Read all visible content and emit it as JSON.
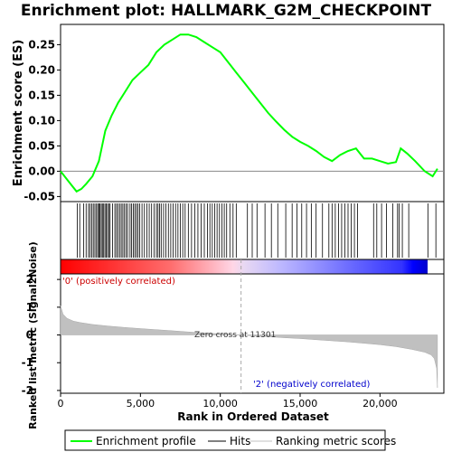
{
  "chart_data": [
    {
      "type": "line",
      "title": "Enrichment plot: HALLMARK_G2M_CHECKPOINT",
      "xlabel": "",
      "ylabel": "Enrichment score (ES)",
      "xlim": [
        0,
        24000
      ],
      "ylim": [
        -0.06,
        0.29
      ],
      "yticks": [
        -0.05,
        0.0,
        0.05,
        0.1,
        0.15,
        0.2,
        0.25
      ],
      "ytick_labels": [
        "-0.05",
        "0.00",
        "0.05",
        "0.10",
        "0.15",
        "0.20",
        "0.25"
      ],
      "series": [
        {
          "name": "Enrichment profile",
          "color": "#00ff00",
          "x": [
            0,
            500,
            1000,
            1300,
            1600,
            2000,
            2400,
            2800,
            3200,
            3600,
            4000,
            4500,
            5000,
            5500,
            6000,
            6500,
            7000,
            7500,
            8000,
            8500,
            9000,
            9500,
            10000,
            10500,
            11000,
            11500,
            12000,
            12500,
            13000,
            13500,
            14000,
            14500,
            15000,
            15500,
            16000,
            16500,
            17000,
            17500,
            18000,
            18500,
            19000,
            19500,
            20000,
            20500,
            21000,
            21300,
            21700,
            22200,
            22800,
            23300,
            23600
          ],
          "y": [
            0.0,
            -0.02,
            -0.04,
            -0.035,
            -0.025,
            -0.01,
            0.02,
            0.08,
            0.11,
            0.135,
            0.155,
            0.18,
            0.195,
            0.21,
            0.235,
            0.25,
            0.26,
            0.27,
            0.27,
            0.265,
            0.255,
            0.245,
            0.235,
            0.215,
            0.195,
            0.175,
            0.155,
            0.135,
            0.115,
            0.098,
            0.082,
            0.068,
            0.058,
            0.05,
            0.04,
            0.028,
            0.02,
            0.032,
            0.04,
            0.045,
            0.025,
            0.025,
            0.02,
            0.015,
            0.018,
            0.045,
            0.035,
            0.02,
            0.0,
            -0.01,
            0.005
          ]
        }
      ],
      "zero_line": 0.0
    },
    {
      "type": "hits",
      "legend_label": "Hits",
      "color": "#000000",
      "hit_positions": [
        1050,
        1200,
        1450,
        1600,
        1750,
        1850,
        1950,
        2050,
        2150,
        2250,
        2330,
        2400,
        2470,
        2550,
        2620,
        2700,
        2780,
        2860,
        2940,
        3020,
        3100,
        3250,
        3400,
        3500,
        3600,
        3700,
        3800,
        3900,
        4000,
        4100,
        4200,
        4350,
        4450,
        4550,
        4650,
        4750,
        4850,
        4950,
        5100,
        5250,
        5400,
        5550,
        5700,
        5850,
        6000,
        6100,
        6200,
        6300,
        6450,
        6600,
        6750,
        6900,
        7050,
        7200,
        7350,
        7500,
        7650,
        7800,
        8000,
        8200,
        8400,
        8600,
        8800,
        9000,
        9200,
        9350,
        9500,
        9650,
        9800,
        9950,
        10100,
        10250,
        10400,
        10600,
        10800,
        11000,
        11700,
        12000,
        12300,
        12800,
        13200,
        13600,
        14100,
        14500,
        14800,
        15100,
        15400,
        15700,
        16000,
        16400,
        16800,
        17000,
        17200,
        17400,
        17600,
        17800,
        18000,
        18200,
        18400,
        18600,
        19600,
        19800,
        20100,
        20400,
        20800,
        21100,
        21200,
        21400,
        21800,
        23000,
        23500
      ]
    },
    {
      "type": "area",
      "ylabel": "Ranked list metric (Signal2Noise)",
      "xlabel": "Rank in Ordered Dataset",
      "xlim": [
        0,
        24000
      ],
      "ylim": [
        -2.1,
        2.2
      ],
      "yticks": [
        -2,
        -1,
        0,
        1,
        2
      ],
      "ytick_labels": [
        "-2",
        "-1",
        "0",
        "1",
        "2"
      ],
      "xticks": [
        0,
        5000,
        10000,
        15000,
        20000
      ],
      "xtick_labels": [
        "0",
        "5,000",
        "10,000",
        "15,000",
        "20,000"
      ],
      "series": [
        {
          "name": "Ranking metric scores",
          "color": "#c0c0c0",
          "x": [
            0,
            150,
            400,
            800,
            1200,
            2000,
            3000,
            4000,
            5000,
            6000,
            7000,
            8000,
            9000,
            10000,
            11301,
            12000,
            13000,
            14000,
            15000,
            16000,
            17000,
            18000,
            19000,
            20000,
            21000,
            22000,
            22800,
            23200,
            23400,
            23550,
            23600
          ],
          "y": [
            1.05,
            0.75,
            0.6,
            0.5,
            0.45,
            0.38,
            0.32,
            0.27,
            0.23,
            0.19,
            0.15,
            0.11,
            0.07,
            0.04,
            0.0,
            -0.03,
            -0.06,
            -0.1,
            -0.13,
            -0.17,
            -0.21,
            -0.25,
            -0.3,
            -0.35,
            -0.42,
            -0.52,
            -0.62,
            -0.72,
            -0.85,
            -1.2,
            -1.9
          ]
        }
      ],
      "zero_cross": 11301,
      "zero_cross_label": "Zero cross at 11301",
      "pos_label": "'0' (positively correlated)",
      "neg_label": "'2' (negatively correlated)",
      "pos_color": "#ff0000",
      "neg_color": "#0000ff"
    }
  ],
  "legend": {
    "items": [
      {
        "label": "Enrichment profile",
        "color": "#00ff00"
      },
      {
        "label": "Hits",
        "color": "#000000"
      },
      {
        "label": "Ranking metric scores",
        "color": "#c0c0c0"
      }
    ]
  }
}
